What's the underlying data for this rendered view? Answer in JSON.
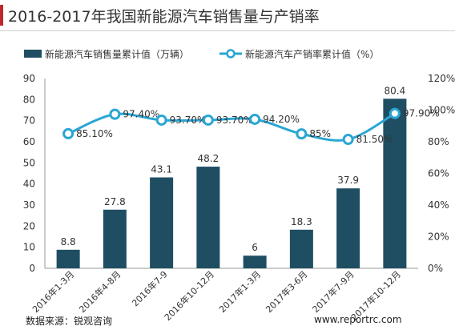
{
  "title": "2016-2017年我国新能源汽车销售量与产销率",
  "source_text": "数据来源：锐观咨询",
  "website_text": "www.reportrc.com",
  "colors": {
    "bar": "#1f4e63",
    "line": "#2aa6d4",
    "marker_fill": "#ffffff",
    "accent": "#c0262d"
  },
  "chart_data": {
    "type": "bar+line",
    "categories": [
      "2016年1-3月",
      "2016年4-8月",
      "2016年7-9",
      "2016年10-12月",
      "2017年1-3月",
      "2017年3-6月",
      "2017年7-9月",
      "2017年10-12月"
    ],
    "series": [
      {
        "name": "新能源汽车销售量累计值（万辆）",
        "type": "bar",
        "axis": "left",
        "values": [
          8.8,
          27.8,
          43.1,
          48.2,
          6,
          18.3,
          37.9,
          80.4
        ],
        "labels": [
          "8.8",
          "27.8",
          "43.1",
          "48.2",
          "6",
          "18.3",
          "37.9",
          "80.4"
        ]
      },
      {
        "name": "新能源汽车产销率累计值（%）",
        "type": "line",
        "axis": "right",
        "values": [
          85.1,
          97.4,
          93.7,
          93.7,
          94.2,
          85,
          81.5,
          97.9
        ],
        "labels": [
          "85.10%",
          "97.40%",
          "93.70%",
          "93.70%",
          "94.20%",
          "85%",
          "81.50%",
          "97.90%"
        ]
      }
    ],
    "y_left": {
      "min": 0,
      "max": 90,
      "ticks": [
        "0",
        "10",
        "20",
        "30",
        "40",
        "50",
        "60",
        "70",
        "80",
        "90"
      ]
    },
    "y_right": {
      "min": 0,
      "max": 120,
      "ticks": [
        "0%",
        "20%",
        "40%",
        "60%",
        "80%",
        "100%",
        "120%"
      ]
    },
    "legend_position": "top",
    "grid": false
  }
}
